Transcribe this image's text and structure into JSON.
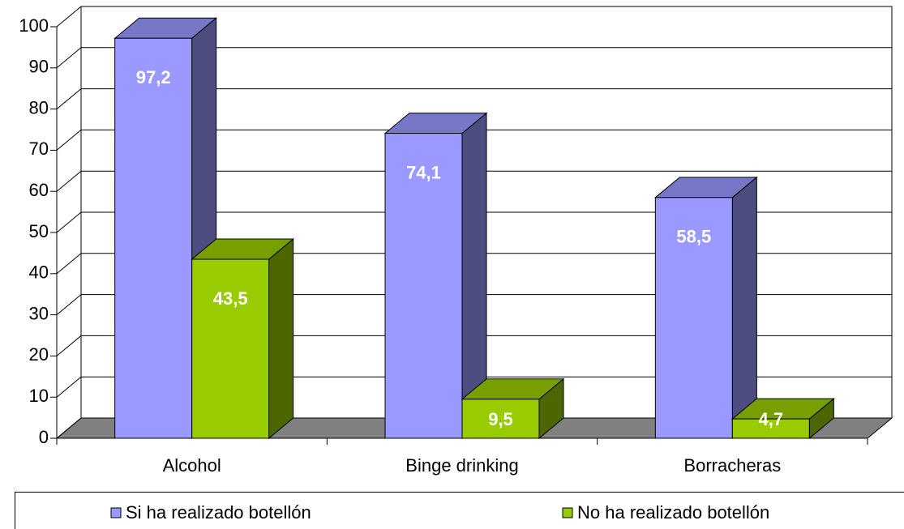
{
  "chart_data": {
    "type": "bar3d",
    "categories": [
      "Alcohol",
      "Binge drinking",
      "Borracheras"
    ],
    "series": [
      {
        "name": "Si ha realizado botellón",
        "color": "#9999ff",
        "values": [
          97.2,
          74.1,
          58.5
        ],
        "value_labels": [
          "97,2",
          "74,1",
          "58,5"
        ]
      },
      {
        "name": "No ha realizado botellón",
        "color": "#99cc00",
        "values": [
          43.5,
          9.5,
          4.7
        ],
        "value_labels": [
          "43,5",
          "9,5",
          "4,7"
        ]
      }
    ],
    "ylim": [
      0,
      100
    ],
    "yticks": [
      0,
      10,
      20,
      30,
      40,
      50,
      60,
      70,
      80,
      90,
      100
    ],
    "grid": true,
    "legend": "bottom"
  }
}
